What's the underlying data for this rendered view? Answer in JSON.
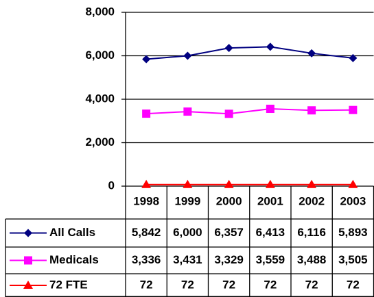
{
  "chart_data": {
    "type": "line",
    "categories": [
      "1998",
      "1999",
      "2000",
      "2001",
      "2002",
      "2003"
    ],
    "series": [
      {
        "name": "All Calls",
        "color": "#000080",
        "marker": "diamond",
        "values": [
          5842,
          6000,
          6357,
          6413,
          6116,
          5893
        ],
        "value_labels": [
          "5,842",
          "6,000",
          "6,357",
          "6,413",
          "6,116",
          "5,893"
        ]
      },
      {
        "name": "Medicals",
        "color": "#ff00ff",
        "marker": "square",
        "values": [
          3336,
          3431,
          3329,
          3559,
          3488,
          3505
        ],
        "value_labels": [
          "3,336",
          "3,431",
          "3,329",
          "3,559",
          "3,488",
          "3,505"
        ]
      },
      {
        "name": "72 FTE",
        "color": "#ff0000",
        "marker": "triangle",
        "values": [
          72,
          72,
          72,
          72,
          72,
          72
        ]
      }
    ],
    "ylim": [
      0,
      8000
    ],
    "yticks": [
      0,
      {
        "value": 2000,
        "label": "2,000"
      },
      {
        "value": 4000,
        "label": "4,000"
      },
      {
        "value": 6000,
        "label": "6,000"
      },
      {
        "value": 8000,
        "label": "8,000"
      }
    ],
    "grid": true
  }
}
